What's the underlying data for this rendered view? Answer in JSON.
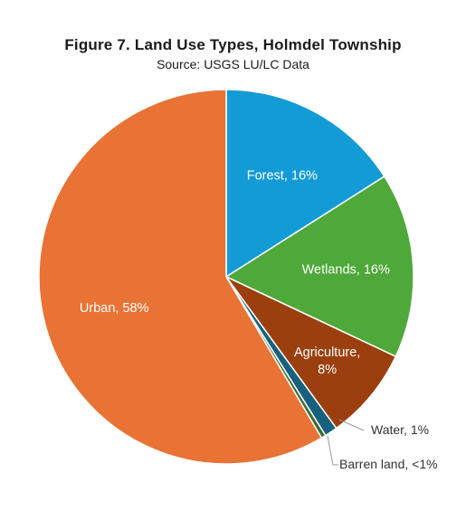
{
  "chart_data": {
    "type": "pie",
    "title": "Figure 7.  Land Use Types, Holmdel Township",
    "subtitle": "Source: USGS LU/LC Data",
    "start_angle_deg": 0,
    "direction": "clockwise",
    "slices": [
      {
        "name": "Forest",
        "value": 16,
        "label": "Forest, 16%",
        "color": "#139BD6",
        "label_pos": "inside"
      },
      {
        "name": "Wetlands",
        "value": 16,
        "label": "Wetlands, 16%",
        "color": "#4FA83A",
        "label_pos": "inside"
      },
      {
        "name": "Agriculture",
        "value": 8,
        "label_lines": [
          "Agriculture,",
          "8%"
        ],
        "color": "#9B3F0F",
        "label_pos": "inside"
      },
      {
        "name": "Water",
        "value": 1.1,
        "label": "Water, 1%",
        "color": "#17607E",
        "label_pos": "outside"
      },
      {
        "name": "Barren land",
        "value": 0.4,
        "label": "Barren land, <1%",
        "color": "#3F6B34",
        "label_pos": "outside"
      },
      {
        "name": "Urban",
        "value": 58.5,
        "label": "Urban, 58%",
        "color": "#E87335",
        "label_pos": "inside"
      }
    ]
  }
}
